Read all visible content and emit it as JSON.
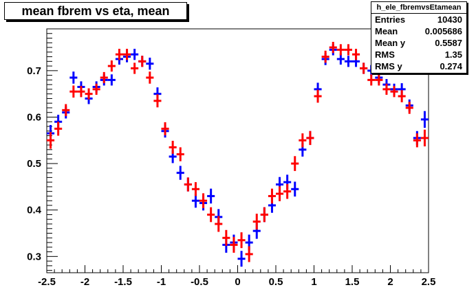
{
  "title": "mean fbrem vs eta, mean",
  "stats": {
    "name": "h_ele_fbremvsEtamean",
    "rows": [
      {
        "label": "Entries",
        "value": "10430"
      },
      {
        "label": "Mean",
        "value": "0.005686"
      },
      {
        "label": "Mean y",
        "value": "0.5587"
      },
      {
        "label": "RMS",
        "value": "1.35"
      },
      {
        "label": "RMS y",
        "value": "0.274"
      }
    ]
  },
  "chart_data": {
    "type": "scatter",
    "title": "mean fbrem vs eta, mean",
    "xlabel": "",
    "ylabel": "",
    "xlim": [
      -2.5,
      2.5
    ],
    "ylim": [
      0.265,
      0.79
    ],
    "x_ticks": [
      "-2.5",
      "-2",
      "-1.5",
      "-1",
      "-0.5",
      "0",
      "0.5",
      "1",
      "1.5",
      "2",
      "2.5"
    ],
    "y_ticks": [
      "0.3",
      "0.4",
      "0.5",
      "0.6",
      "0.7"
    ],
    "x_tick_values": [
      -2.5,
      -2,
      -1.5,
      -1,
      -0.5,
      0,
      0.5,
      1,
      1.5,
      2,
      2.5
    ],
    "y_tick_values": [
      0.3,
      0.4,
      0.5,
      0.6,
      0.7
    ],
    "grid": false,
    "colors": {
      "series1": "#0000ff",
      "series2": "#ff0000"
    },
    "x": [
      -2.45,
      -2.35,
      -2.25,
      -2.15,
      -2.05,
      -1.95,
      -1.85,
      -1.75,
      -1.65,
      -1.55,
      -1.45,
      -1.35,
      -1.25,
      -1.15,
      -1.05,
      -0.95,
      -0.85,
      -0.75,
      -0.65,
      -0.55,
      -0.45,
      -0.35,
      -0.25,
      -0.15,
      -0.05,
      0.05,
      0.15,
      0.25,
      0.35,
      0.45,
      0.55,
      0.65,
      0.75,
      0.85,
      0.95,
      1.05,
      1.15,
      1.25,
      1.35,
      1.45,
      1.55,
      1.65,
      1.75,
      1.85,
      1.95,
      2.05,
      2.15,
      2.25,
      2.35,
      2.45
    ],
    "series": [
      {
        "values": [
          0.565,
          0.59,
          0.61,
          0.685,
          0.665,
          0.64,
          0.665,
          0.68,
          0.68,
          0.725,
          0.73,
          0.735,
          0.72,
          0.715,
          0.65,
          0.57,
          0.515,
          0.48,
          0.455,
          0.42,
          0.415,
          0.43,
          0.385,
          0.325,
          0.33,
          0.295,
          0.33,
          0.355,
          0.39,
          0.41,
          0.455,
          0.46,
          0.445,
          0.53,
          0.555,
          0.66,
          0.725,
          0.745,
          0.725,
          0.72,
          0.72,
          0.705,
          0.7,
          0.685,
          0.67,
          0.66,
          0.66,
          0.625,
          0.555,
          0.595
        ],
        "errors": [
          0.018,
          0.015,
          0.013,
          0.013,
          0.012,
          0.012,
          0.012,
          0.012,
          0.012,
          0.012,
          0.012,
          0.012,
          0.012,
          0.013,
          0.014,
          0.014,
          0.014,
          0.015,
          0.015,
          0.015,
          0.016,
          0.016,
          0.017,
          0.017,
          0.017,
          0.017,
          0.017,
          0.017,
          0.016,
          0.016,
          0.016,
          0.016,
          0.016,
          0.015,
          0.015,
          0.014,
          0.013,
          0.012,
          0.012,
          0.012,
          0.012,
          0.012,
          0.012,
          0.012,
          0.012,
          0.012,
          0.013,
          0.013,
          0.015,
          0.018
        ]
      },
      {
        "values": [
          0.55,
          0.575,
          0.615,
          0.655,
          0.655,
          0.65,
          0.66,
          0.685,
          0.71,
          0.735,
          0.735,
          0.705,
          0.72,
          0.685,
          0.635,
          0.575,
          0.535,
          0.52,
          0.455,
          0.445,
          0.42,
          0.39,
          0.37,
          0.34,
          0.325,
          0.335,
          0.305,
          0.375,
          0.39,
          0.43,
          0.435,
          0.44,
          0.5,
          0.55,
          0.555,
          0.645,
          0.73,
          0.75,
          0.745,
          0.745,
          0.735,
          0.705,
          0.68,
          0.68,
          0.66,
          0.655,
          0.645,
          0.62,
          0.55,
          0.555
        ],
        "errors": [
          0.018,
          0.015,
          0.013,
          0.013,
          0.012,
          0.012,
          0.012,
          0.012,
          0.012,
          0.012,
          0.012,
          0.012,
          0.012,
          0.013,
          0.014,
          0.014,
          0.014,
          0.015,
          0.015,
          0.015,
          0.016,
          0.016,
          0.017,
          0.017,
          0.017,
          0.017,
          0.017,
          0.017,
          0.016,
          0.016,
          0.016,
          0.016,
          0.016,
          0.015,
          0.015,
          0.014,
          0.013,
          0.012,
          0.012,
          0.012,
          0.012,
          0.012,
          0.012,
          0.012,
          0.012,
          0.012,
          0.013,
          0.013,
          0.015,
          0.018
        ]
      }
    ]
  }
}
